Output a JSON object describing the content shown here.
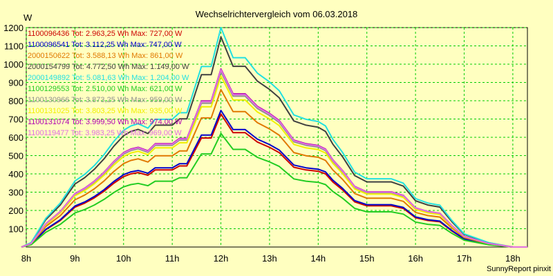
{
  "chart_data": {
    "type": "line",
    "title": "Wechselrichtervergleich vom 06.03.2018",
    "ylabel": "W",
    "footer": "SunnyReport pinxit",
    "ylim": [
      0,
      1200
    ],
    "xlim": [
      8.0,
      18.3
    ],
    "y_ticks": [
      100,
      200,
      300,
      400,
      500,
      600,
      700,
      800,
      900,
      1000,
      1100,
      1200
    ],
    "x_ticks": [
      {
        "value": 8,
        "label": "8h"
      },
      {
        "value": 9,
        "label": "9h"
      },
      {
        "value": 10,
        "label": "10h"
      },
      {
        "value": 11,
        "label": "11h"
      },
      {
        "value": 12,
        "label": "12h"
      },
      {
        "value": 13,
        "label": "13h"
      },
      {
        "value": 14,
        "label": "14h"
      },
      {
        "value": 15,
        "label": "15h"
      },
      {
        "value": 16,
        "label": "16h"
      },
      {
        "value": 17,
        "label": "17h"
      },
      {
        "value": 18,
        "label": "18h"
      }
    ],
    "grid": true,
    "legend_position": "top-left",
    "x": [
      7.9,
      8.1,
      8.4,
      8.7,
      9.0,
      9.2,
      9.4,
      9.6,
      9.8,
      10.0,
      10.15,
      10.3,
      10.5,
      10.65,
      10.8,
      11.0,
      11.15,
      11.3,
      11.6,
      11.8,
      12.0,
      12.25,
      12.5,
      12.75,
      13.0,
      13.2,
      13.5,
      13.75,
      14.0,
      14.15,
      14.3,
      14.5,
      14.75,
      15.0,
      15.25,
      15.5,
      15.75,
      16.0,
      16.25,
      16.5,
      16.75,
      17.0,
      17.25,
      17.5,
      17.75,
      18.0,
      18.3
    ],
    "base_profile": [
      0,
      0.02,
      0.13,
      0.2,
      0.3,
      0.33,
      0.37,
      0.42,
      0.48,
      0.53,
      0.55,
      0.56,
      0.54,
      0.58,
      0.58,
      0.58,
      0.61,
      0.61,
      0.82,
      0.82,
      1.0,
      0.86,
      0.86,
      0.79,
      0.75,
      0.71,
      0.6,
      0.58,
      0.57,
      0.55,
      0.49,
      0.43,
      0.34,
      0.31,
      0.31,
      0.31,
      0.29,
      0.22,
      0.2,
      0.19,
      0.12,
      0.06,
      0.04,
      0.02,
      0.01,
      0,
      0
    ],
    "series": [
      {
        "name": "1100096436 Tot: 2.963,25 Wh Max: 727,00 W",
        "max": 727,
        "color": "#cc0000"
      },
      {
        "name": "1100096541 Tot: 3.112,25 Wh Max: 747,00 W",
        "max": 747,
        "color": "#0000cc"
      },
      {
        "name": "2000150622 Tot: 3.588,13 Wh Max: 861,00 W",
        "max": 861,
        "color": "#e07800"
      },
      {
        "name": "2000154799 Tot: 4.772,50 Wh Max: 1.149,00 W",
        "max": 1149,
        "color": "#404040"
      },
      {
        "name": "2000149892 Tot: 5.081,63 Wh Max: 1.204,00 W",
        "max": 1204,
        "color": "#22e0e0"
      },
      {
        "name": "1100129553 Tot: 2.510,00 Wh Max: 621,00 W",
        "max": 621,
        "color": "#22cc22"
      },
      {
        "name": "1100130966 Tot: 3.873,25 Wh Max: 959,00 W",
        "max": 959,
        "color": "#909090"
      },
      {
        "name": "1100131025 Tot: 3.803,25 Wh Max: 935,00 W",
        "max": 935,
        "color": "#f0f000"
      },
      {
        "name": "1100131074 Tot: 3.999,50 Wh Max: 974,00 W",
        "max": 974,
        "color": "#b000b0"
      },
      {
        "name": "1100119477 Tot: 3.983,25 Wh Max: 969,00 W",
        "max": 969,
        "color": "#e070e0"
      }
    ]
  }
}
